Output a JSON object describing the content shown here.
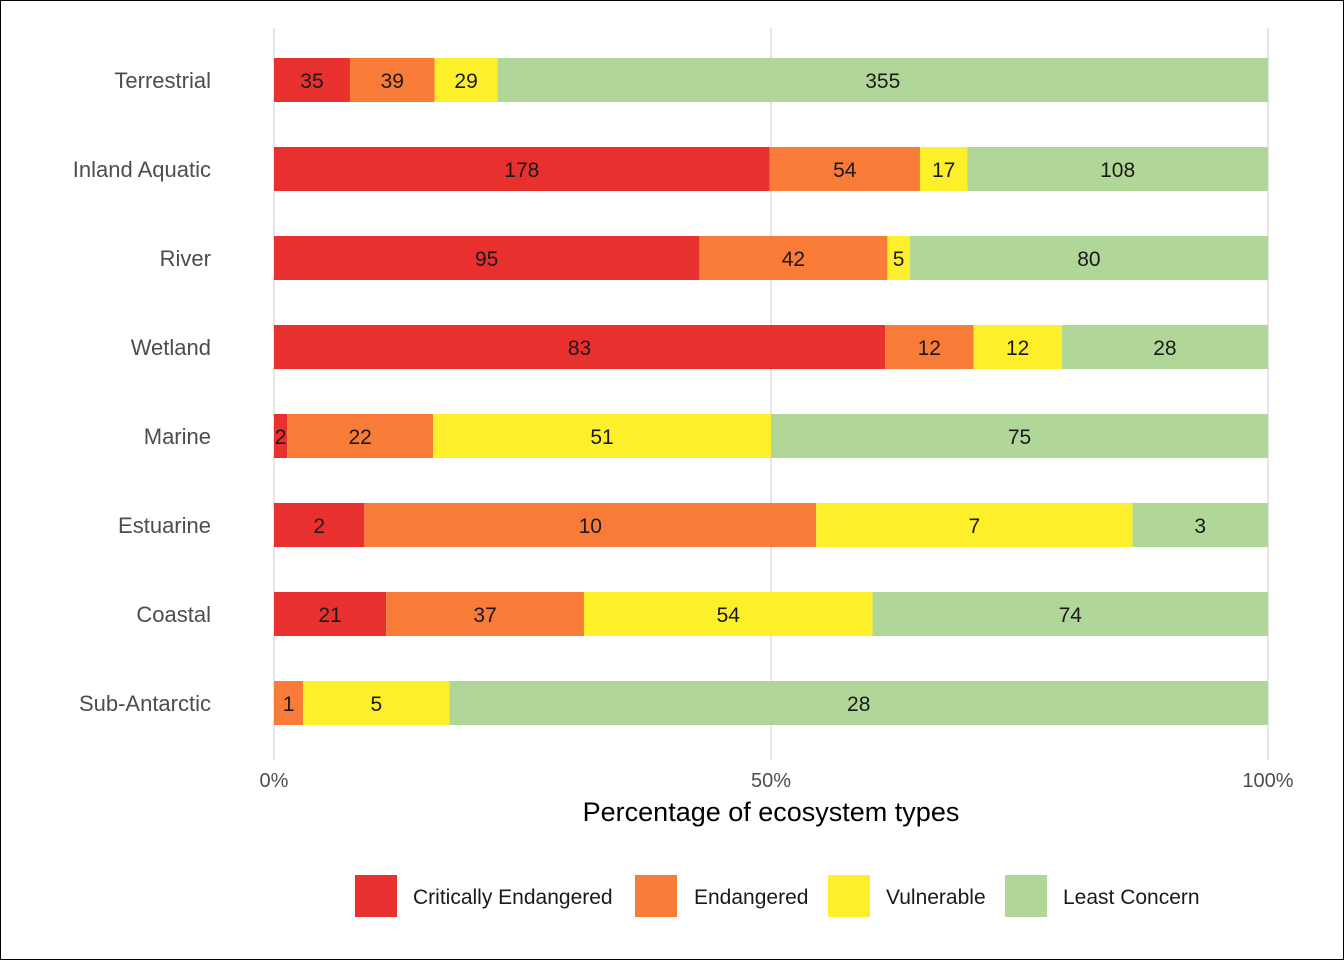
{
  "chart_data": {
    "type": "bar",
    "orientation": "horizontal",
    "stacked": "percent",
    "categories": [
      "Terrestrial",
      "Inland Aquatic",
      "River",
      "Wetland",
      "Marine",
      "Estuarine",
      "Coastal",
      "Sub-Antarctic"
    ],
    "series": [
      {
        "name": "Critically Endangered",
        "color": "#e8302f",
        "values": [
          35,
          178,
          95,
          83,
          2,
          2,
          21,
          0
        ]
      },
      {
        "name": "Endangered",
        "color": "#f87c37",
        "values": [
          39,
          54,
          42,
          12,
          22,
          10,
          37,
          1
        ]
      },
      {
        "name": "Vulnerable",
        "color": "#fdf02a",
        "values": [
          29,
          17,
          5,
          12,
          51,
          7,
          54,
          5
        ]
      },
      {
        "name": "Least Concern",
        "color": "#b1d798",
        "values": [
          355,
          108,
          80,
          28,
          75,
          3,
          74,
          28
        ]
      }
    ],
    "xlabel": "Percentage of ecosystem types",
    "ylabel": "",
    "xlim": [
      0,
      100
    ],
    "x_ticks": [
      "0%",
      "50%",
      "100%"
    ],
    "legend_position": "bottom",
    "grid": true
  }
}
